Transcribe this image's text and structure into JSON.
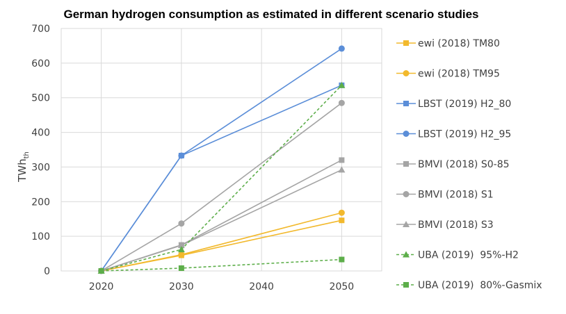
{
  "chart_data": {
    "type": "line",
    "title": "German hydrogen consumption as estimated in different scenario studies",
    "xlabel": "",
    "ylabel": "TWh",
    "ylabel_subscript": "th",
    "x": [
      2020,
      2030,
      2040,
      2050
    ],
    "x_ticks": [
      "2020",
      "2030",
      "2040",
      "2050"
    ],
    "xlim": [
      2015,
      2055
    ],
    "ylim": [
      0,
      700
    ],
    "y_ticks": [
      "0",
      "100",
      "200",
      "300",
      "400",
      "500",
      "600",
      "700"
    ],
    "grid": true,
    "legend_position": "right",
    "series": [
      {
        "name": "ewi (2018) TM80",
        "color": "#F2B92D",
        "marker": "square",
        "dash": "solid",
        "points": [
          [
            2020,
            0
          ],
          [
            2030,
            45
          ],
          [
            2050,
            146
          ]
        ]
      },
      {
        "name": "ewi (2018) TM95",
        "color": "#F2B92D",
        "marker": "circle",
        "dash": "solid",
        "points": [
          [
            2020,
            0
          ],
          [
            2030,
            47
          ],
          [
            2050,
            168
          ]
        ]
      },
      {
        "name": "LBST (2019) H2_80",
        "color": "#5B8ED8",
        "marker": "square",
        "dash": "solid",
        "points": [
          [
            2020,
            0
          ],
          [
            2030,
            333
          ],
          [
            2050,
            536
          ]
        ]
      },
      {
        "name": "LBST (2019) H2_95",
        "color": "#5B8ED8",
        "marker": "circle",
        "dash": "solid",
        "points": [
          [
            2020,
            0
          ],
          [
            2030,
            333
          ],
          [
            2050,
            642
          ]
        ]
      },
      {
        "name": "BMVI (2018) S0-85",
        "color": "#A5A5A5",
        "marker": "square",
        "dash": "solid",
        "points": [
          [
            2020,
            0
          ],
          [
            2030,
            75
          ],
          [
            2050,
            320
          ]
        ]
      },
      {
        "name": "BMVI (2018) S1",
        "color": "#A5A5A5",
        "marker": "circle",
        "dash": "solid",
        "points": [
          [
            2020,
            0
          ],
          [
            2030,
            137
          ],
          [
            2050,
            485
          ]
        ]
      },
      {
        "name": "BMVI (2018) S3",
        "color": "#A5A5A5",
        "marker": "triangle",
        "dash": "solid",
        "points": [
          [
            2020,
            0
          ],
          [
            2030,
            74
          ],
          [
            2050,
            292
          ]
        ]
      },
      {
        "name": "UBA (2019)  95%-H2",
        "color": "#5DAE4A",
        "marker": "triangle",
        "dash": "dashed",
        "points": [
          [
            2020,
            0
          ],
          [
            2030,
            62
          ],
          [
            2050,
            536
          ]
        ]
      },
      {
        "name": "UBA (2019)  80%-Gasmix",
        "color": "#5DAE4A",
        "marker": "square",
        "dash": "dashed",
        "points": [
          [
            2020,
            0
          ],
          [
            2030,
            8
          ],
          [
            2050,
            33
          ]
        ]
      }
    ]
  }
}
